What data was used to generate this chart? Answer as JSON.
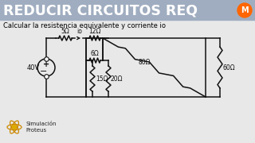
{
  "title": "REDUCIR CIRCUITOS REQ",
  "subtitle": "Calcular la resistencia equivalente y corriente io",
  "title_bg": "#a0adc0",
  "title_color": "#ffffff",
  "subtitle_color": "#000000",
  "bg_color": "#e8e8e8",
  "resistors": {
    "R1": "5Ω",
    "R2": "12Ω",
    "R3": "6Ω",
    "R4": "15Ω",
    "R5": "20Ω",
    "R6": "80Ω",
    "R7": "60Ω"
  },
  "source_voltage": "40V",
  "current_label": "io",
  "logo_color": "#ff6600",
  "bottom_text1": "Simulación",
  "bottom_text2": "Proteus"
}
